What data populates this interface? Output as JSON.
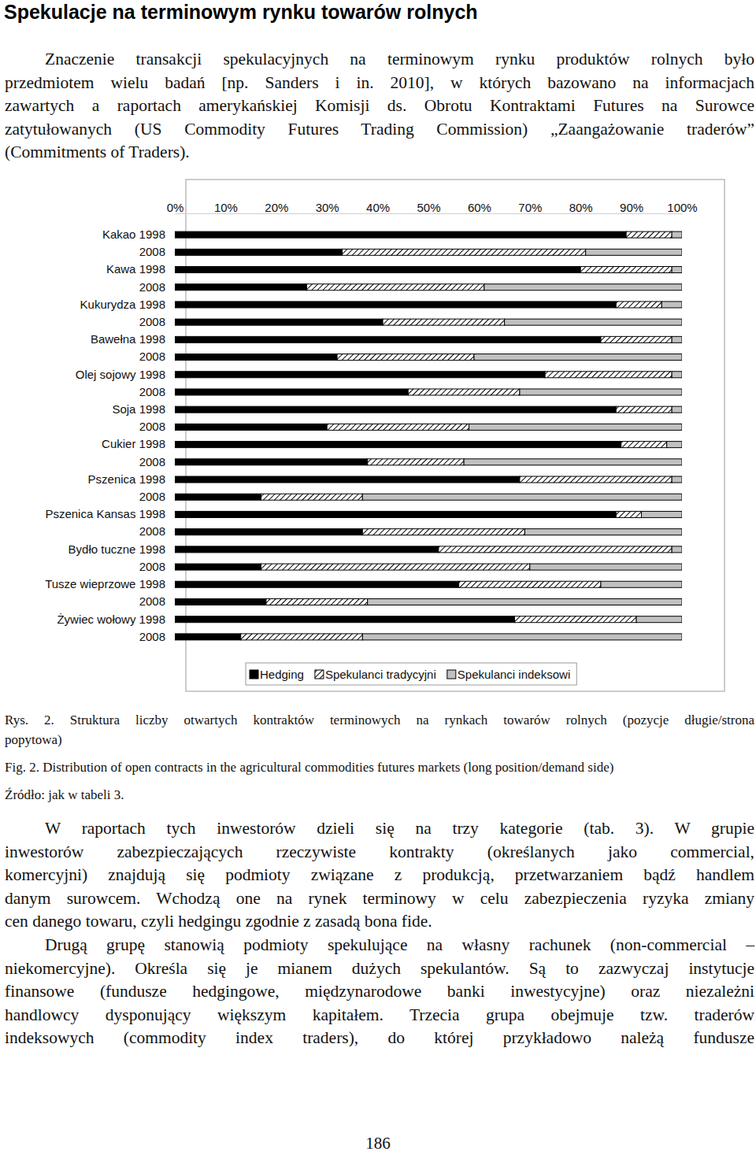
{
  "heading": "Spekulacje na terminowym rynku towarów rolnych",
  "paragraphs": [
    [
      "Znaczenie transakcji spekulacyjnych na terminowym rynku produktów rolnych było",
      "przedmiotem wielu badań [np. Sanders i in. 2010], w których bazowano na informacjach",
      "zawartych a raportach amerykańskiej Komisji ds. Obrotu Kontraktami Futures na Surowce",
      "zatytułowanych (US Commodity Futures Trading Commission) „Zaangażowanie traderów”",
      "(Commitments of Traders)."
    ],
    [
      "W raportach tych inwestorów dzieli się na trzy kategorie (tab. 3). W grupie",
      "inwestorów zabezpieczających rzeczywiste kontrakty (określanych jako commercial,",
      "komercyjni) znajdują się podmioty związane z produkcją, przetwarzaniem bądź handlem",
      "danym surowcem. Wchodzą one na rynek terminowy w celu zabezpieczenia ryzyka zmiany",
      "cen danego towaru, czyli hedgingu zgodnie z zasadą bona fide."
    ],
    [
      "Drugą grupę stanowią podmioty spekulujące na własny rachunek (non-commercial –",
      "niekomercyjne). Określa się je mianem dużych spekulantów. Są to zazwyczaj instytucje",
      "finansowe (fundusze hedgingowe, międzynarodowe banki inwestycyjne) oraz niezależni",
      "handlowcy dysponujący większym kapitałem. Trzecia grupa obejmuje tzw. traderów",
      "indeksowych (commodity index traders), do której przykładowo należą fundusze"
    ]
  ],
  "caption": {
    "rys": [
      "Rys. 2. Struktura liczby otwartych kontraktów terminowych na rynkach towarów rolnych (pozycje długie/strona",
      "popytowa)"
    ],
    "fig": "Fig. 2. Distribution of open contracts in the agricultural commodities futures markets (long position/demand side)",
    "source": "Źródło: jak w tabeli 3."
  },
  "page_number": "186",
  "chart_data": {
    "type": "bar",
    "orientation": "horizontal",
    "stacked": true,
    "legend": "bottom",
    "grid": false,
    "categories": [
      "Kakao 1998",
      "2008",
      "Kawa 1998",
      "2008",
      "Kukurydza 1998",
      "2008",
      "Bawełna 1998",
      "2008",
      "Olej sojowy 1998",
      "2008",
      "Soja 1998",
      "2008",
      "Cukier 1998",
      "2008",
      "Pszenica 1998",
      "2008",
      "Pszenica Kansas 1998",
      "2008",
      "Bydło tuczne 1998",
      "2008",
      "Tusze wieprzowe 1998",
      "2008",
      "Żywiec wołowy 1998",
      "2008"
    ],
    "xlim": [
      0,
      100
    ],
    "xticks": [
      {
        "value": 0,
        "label": "0%"
      },
      {
        "value": 10,
        "label": "10%"
      },
      {
        "value": 20,
        "label": "20%"
      },
      {
        "value": 30,
        "label": "30%"
      },
      {
        "value": 40,
        "label": "40%"
      },
      {
        "value": 50,
        "label": "50%"
      },
      {
        "value": 60,
        "label": "60%"
      },
      {
        "value": 70,
        "label": "70%"
      },
      {
        "value": 80,
        "label": "80%"
      },
      {
        "value": 90,
        "label": "90%"
      },
      {
        "value": 100,
        "label": "100%"
      }
    ],
    "series": [
      {
        "name": "Hedging",
        "color": "#000000",
        "values": [
          89,
          33,
          80,
          26,
          87,
          41,
          84,
          32,
          73,
          46,
          87,
          30,
          88,
          38,
          68,
          17,
          87,
          37,
          52,
          17,
          56,
          18,
          67,
          13
        ]
      },
      {
        "name": "Spekulanci tradycyjni",
        "color": "#000000",
        "values": [
          9,
          48,
          18,
          35,
          9,
          24,
          14,
          27,
          25,
          22,
          11,
          28,
          9,
          19,
          30,
          20,
          5,
          32,
          46,
          53,
          28,
          20,
          24,
          24
        ]
      },
      {
        "name": "Spekulanci indeksowi",
        "color": "#c0c0c0",
        "values": [
          2,
          19,
          2,
          39,
          4,
          35,
          2,
          41,
          2,
          32,
          2,
          42,
          3,
          43,
          2,
          63,
          8,
          31,
          2,
          30,
          16,
          62,
          9,
          63
        ]
      }
    ]
  }
}
